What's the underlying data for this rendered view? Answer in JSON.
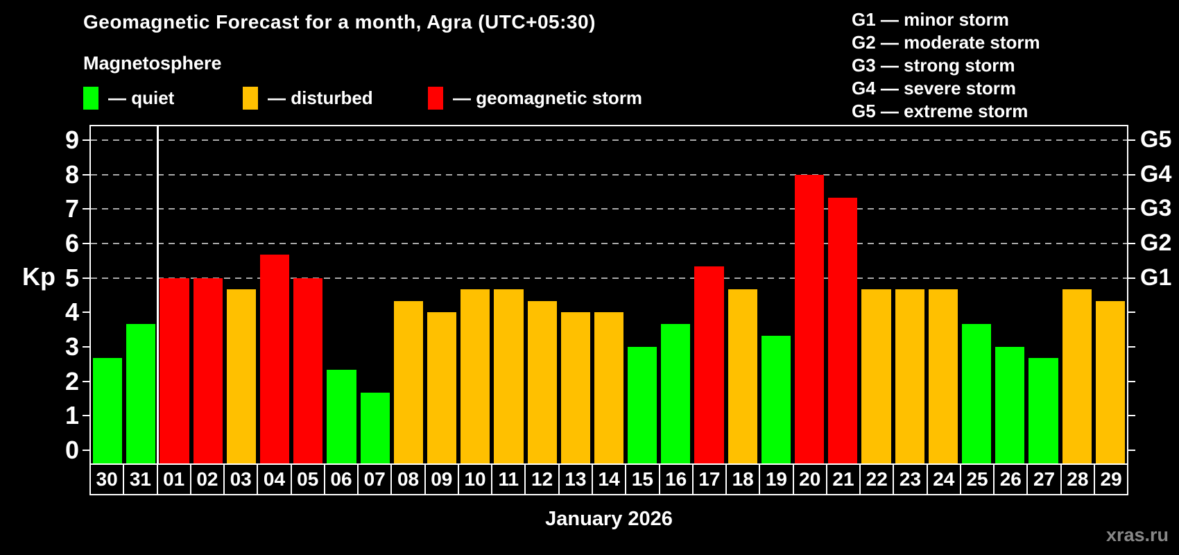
{
  "header": {
    "title": "Geomagnetic Forecast for a month, Agra (UTC+05:30)",
    "subtitle": "Magnetosphere"
  },
  "legend": {
    "items": [
      {
        "key": "quiet",
        "label": "— quiet",
        "color": "#00ff00"
      },
      {
        "key": "disturbed",
        "label": "— disturbed",
        "color": "#ffc000"
      },
      {
        "key": "storm",
        "label": "— geomagnetic storm",
        "color": "#ff0000"
      }
    ]
  },
  "g_legend": {
    "lines": [
      "G1 — minor storm",
      "G2 — moderate storm",
      "G3 — strong storm",
      "G4 — severe storm",
      "G5 — extreme storm"
    ]
  },
  "axes": {
    "kp_label": "Kp",
    "y_ticks": [
      0,
      1,
      2,
      3,
      4,
      5,
      6,
      7,
      8,
      9
    ],
    "grid_levels": [
      5,
      6,
      7,
      8,
      9
    ],
    "right_labels": [
      {
        "label": "G1",
        "kp": 5
      },
      {
        "label": "G2",
        "kp": 6
      },
      {
        "label": "G3",
        "kp": 7
      },
      {
        "label": "G4",
        "kp": 8
      },
      {
        "label": "G5",
        "kp": 9
      }
    ]
  },
  "chart_data": {
    "type": "bar",
    "title": "Geomagnetic Forecast for a month, Agra (UTC+05:30)",
    "categories": [
      "30",
      "31",
      "01",
      "02",
      "03",
      "04",
      "05",
      "06",
      "07",
      "08",
      "09",
      "10",
      "11",
      "12",
      "13",
      "14",
      "15",
      "16",
      "17",
      "18",
      "19",
      "20",
      "21",
      "22",
      "23",
      "24",
      "25",
      "26",
      "27",
      "28",
      "29"
    ],
    "values": [
      2.67,
      3.67,
      5,
      5,
      4.67,
      5.67,
      5,
      2.33,
      1.67,
      4.33,
      4,
      4.67,
      4.67,
      4.33,
      4,
      4,
      3,
      3.67,
      5.33,
      4.67,
      3.33,
      8,
      7.33,
      4.67,
      4.67,
      4.67,
      3.67,
      3,
      2.67,
      4.67,
      4.33
    ],
    "statuses": [
      "quiet",
      "quiet",
      "storm",
      "storm",
      "disturbed",
      "storm",
      "storm",
      "quiet",
      "quiet",
      "disturbed",
      "disturbed",
      "disturbed",
      "disturbed",
      "disturbed",
      "disturbed",
      "disturbed",
      "quiet",
      "quiet",
      "storm",
      "disturbed",
      "quiet",
      "storm",
      "storm",
      "disturbed",
      "disturbed",
      "disturbed",
      "quiet",
      "quiet",
      "quiet",
      "disturbed",
      "disturbed"
    ],
    "status_colors": {
      "quiet": "#00ff00",
      "disturbed": "#ffc000",
      "storm": "#ff0000"
    },
    "xlabel": "January 2026",
    "ylabel": "Kp",
    "ylim": [
      0,
      9
    ],
    "grid": "horizontal dashed lines at Kp 5-9 (G1-G5)",
    "legend_position": "top-left",
    "month_separator_after_category": "31",
    "right_axis_map": {
      "G1": 5,
      "G2": 6,
      "G3": 7,
      "G4": 8,
      "G5": 9
    }
  },
  "footer": {
    "xlabel": "January 2026",
    "watermark": "xras.ru"
  }
}
